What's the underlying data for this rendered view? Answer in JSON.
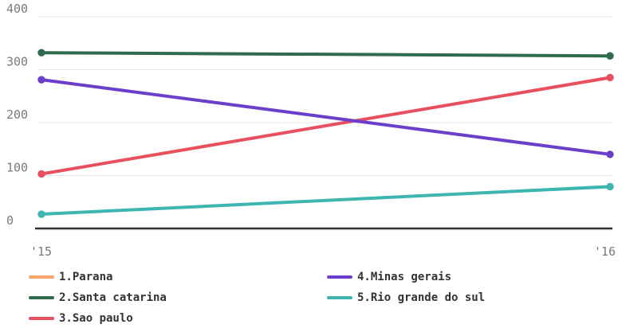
{
  "chart_data": {
    "type": "line",
    "x": [
      "'15",
      "'16"
    ],
    "ylim": [
      0,
      400
    ],
    "yticks": [
      0,
      100,
      200,
      300,
      400
    ],
    "grid": true,
    "legend_position": "bottom",
    "series": [
      {
        "name": "1.Parana",
        "color": "#f7a76b",
        "values": [
          null,
          null
        ]
      },
      {
        "name": "2.Santa catarina",
        "color": "#2f6b4f",
        "values": [
          332,
          326
        ]
      },
      {
        "name": "3.Sao paulo",
        "color": "#e8505f",
        "values": [
          103,
          285
        ]
      },
      {
        "name": "4.Minas gerais",
        "color": "#6b3fc9",
        "values": [
          281,
          140
        ]
      },
      {
        "name": "5.Rio grande do sul",
        "color": "#3db5b0",
        "values": [
          27,
          79
        ]
      }
    ]
  }
}
